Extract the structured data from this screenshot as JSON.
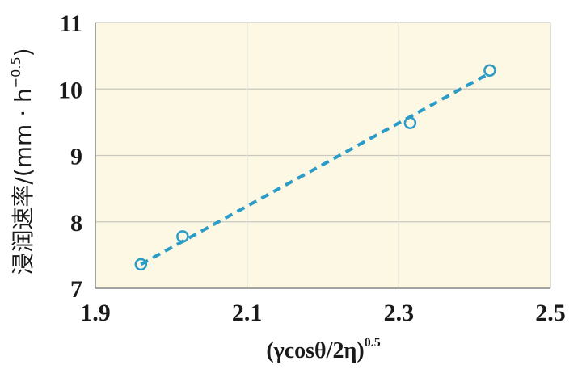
{
  "chart_data": {
    "type": "scatter",
    "title": "",
    "xlabel": "(γcosθ/2η)^0.5",
    "xlabel_parts": {
      "main": "(γcosθ/2η)",
      "exponent": "0.5"
    },
    "ylabel": "浸润速率/(mm · h^-0.5)",
    "ylabel_parts": {
      "prefix": "浸润速率/(mm · h",
      "exponent": "−0.5",
      "suffix": ")"
    },
    "xlim": [
      1.9,
      2.5
    ],
    "ylim": [
      7,
      11
    ],
    "xticks": [
      "1.9",
      "2.1",
      "2.3",
      "2.5"
    ],
    "yticks": [
      "7",
      "8",
      "9",
      "10",
      "11"
    ],
    "grid": true,
    "background_color": "#fcf8e3",
    "series": [
      {
        "marker": "open-circle",
        "color": "#2b9bc7",
        "points": [
          {
            "x": 1.96,
            "y": 7.36
          },
          {
            "x": 2.015,
            "y": 7.78
          },
          {
            "x": 2.315,
            "y": 9.49
          },
          {
            "x": 2.42,
            "y": 10.28
          }
        ]
      }
    ],
    "fit_line": {
      "style": "dashed",
      "color": "#2b9bc7",
      "x": [
        1.96,
        2.42
      ],
      "y": [
        7.36,
        10.24
      ]
    }
  }
}
